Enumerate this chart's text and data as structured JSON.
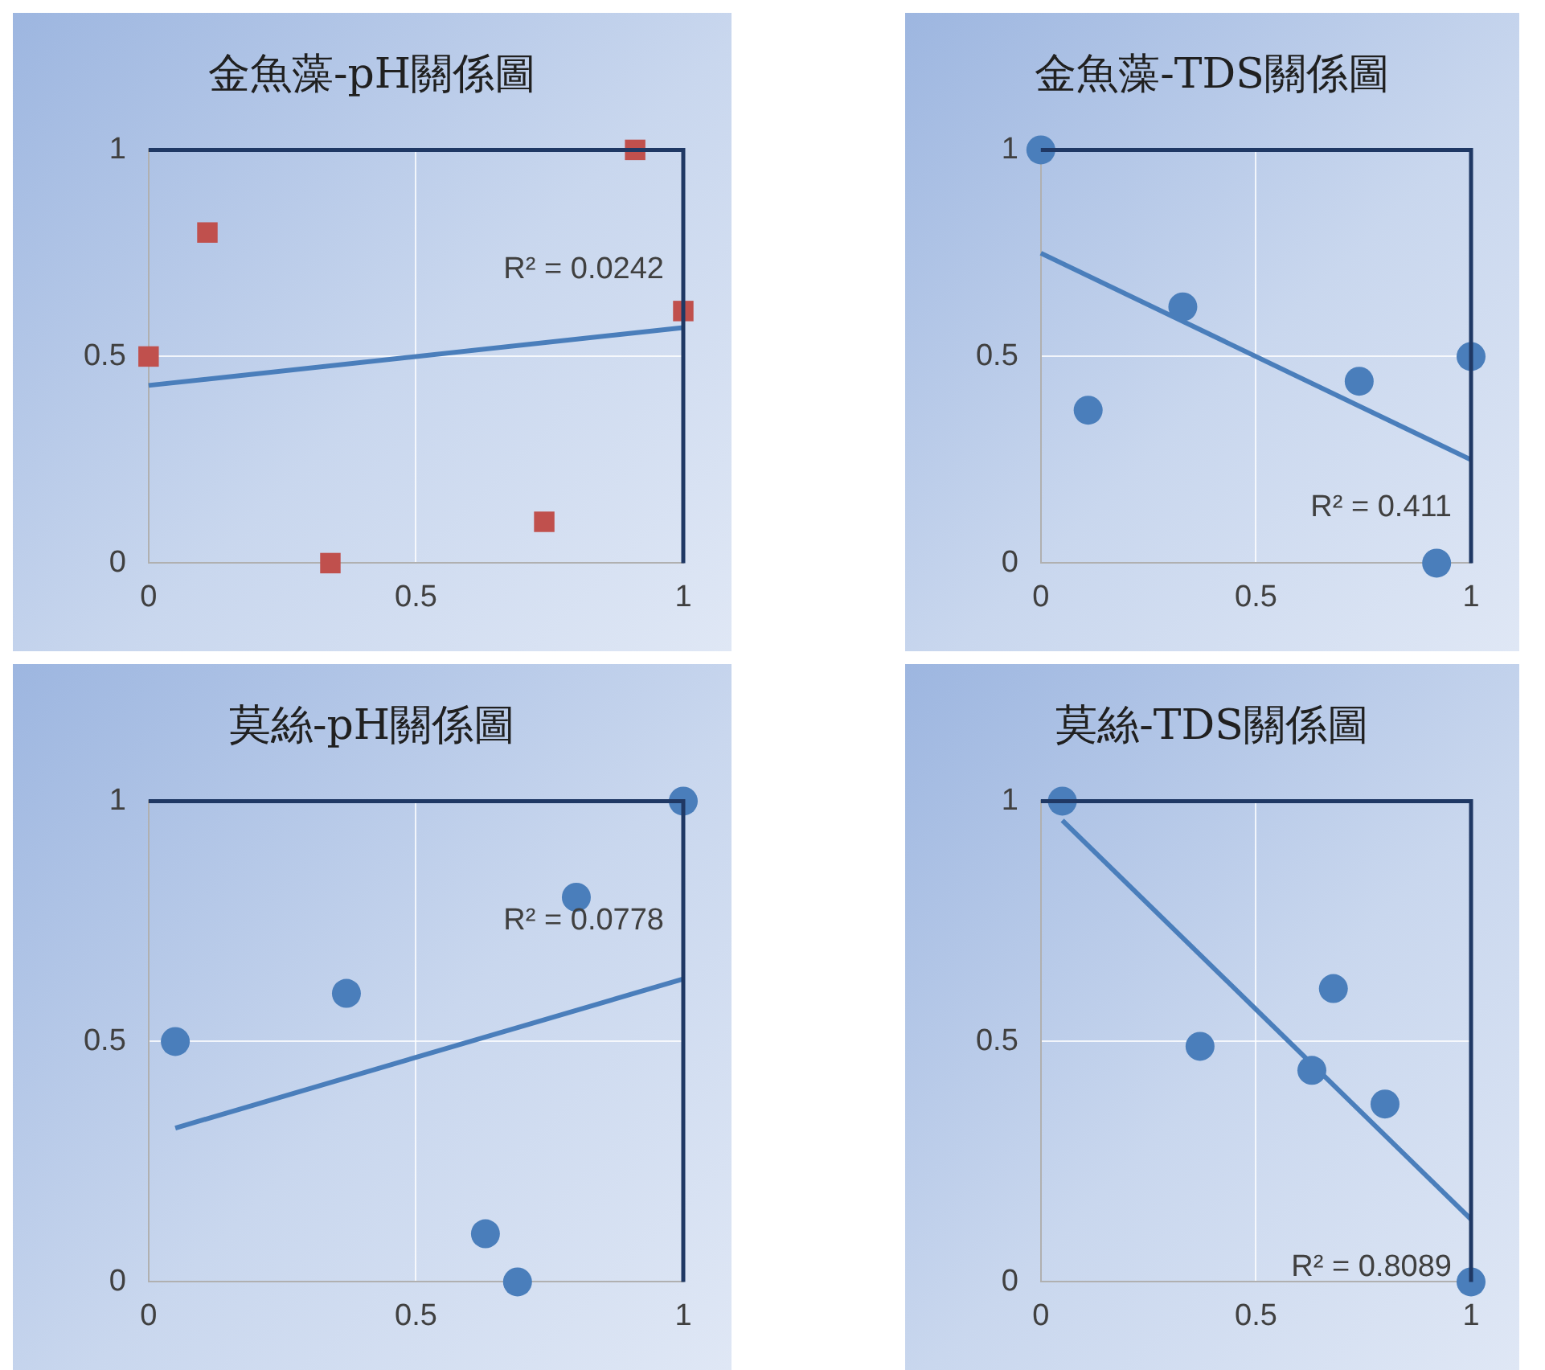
{
  "chart_data": [
    {
      "type": "scatter",
      "title": "金魚藻-pH關係圖",
      "xlim": [
        0,
        1
      ],
      "ylim": [
        0,
        1
      ],
      "xticks": [
        0,
        0.5,
        1
      ],
      "yticks": [
        0,
        0.5,
        1
      ],
      "grid": true,
      "annotations": [
        "R² = 0.0242"
      ],
      "series": [
        {
          "type": "scatter",
          "color": "#c0504d",
          "marker": "square",
          "x": [
            0,
            0.11,
            0.34,
            0.74,
            0.91,
            1
          ],
          "values": [
            0.5,
            0.8,
            0,
            0.1,
            1,
            0.61
          ]
        },
        {
          "type": "line",
          "color": "#4a7ebb",
          "marker": "none",
          "x": [
            0,
            1
          ],
          "values": [
            0.43,
            0.57
          ]
        }
      ]
    },
    {
      "type": "scatter",
      "title": "金魚藻-TDS關係圖",
      "xlim": [
        0,
        1
      ],
      "ylim": [
        0,
        1
      ],
      "xticks": [
        0,
        0.5,
        1
      ],
      "yticks": [
        0,
        0.5,
        1
      ],
      "grid": true,
      "annotations": [
        "R² = 0.411"
      ],
      "series": [
        {
          "type": "scatter",
          "color": "#4a7ebb",
          "marker": "circle",
          "x": [
            0,
            0.11,
            0.33,
            0.74,
            0.92,
            1
          ],
          "values": [
            1,
            0.37,
            0.62,
            0.44,
            0,
            0.5
          ]
        },
        {
          "type": "line",
          "color": "#4a7ebb",
          "marker": "none",
          "x": [
            0,
            1
          ],
          "values": [
            0.75,
            0.25
          ]
        }
      ]
    },
    {
      "type": "scatter",
      "title": "莫絲-pH關係圖",
      "xlim": [
        0,
        1
      ],
      "ylim": [
        0,
        1
      ],
      "xticks": [
        0,
        0.5,
        1
      ],
      "yticks": [
        0,
        0.5,
        1
      ],
      "grid": true,
      "annotations": [
        "R² = 0.0778"
      ],
      "series": [
        {
          "type": "scatter",
          "color": "#4a7ebb",
          "marker": "circle",
          "x": [
            0.05,
            0.37,
            0.63,
            0.69,
            0.8,
            1
          ],
          "values": [
            0.5,
            0.6,
            0.1,
            0,
            0.8,
            1
          ]
        },
        {
          "type": "line",
          "color": "#4a7ebb",
          "marker": "none",
          "x": [
            0.05,
            1
          ],
          "values": [
            0.32,
            0.63
          ]
        }
      ]
    },
    {
      "type": "scatter",
      "title": "莫絲-TDS關係圖",
      "xlim": [
        0,
        1
      ],
      "ylim": [
        0,
        1
      ],
      "xticks": [
        0,
        0.5,
        1
      ],
      "yticks": [
        0,
        0.5,
        1
      ],
      "grid": true,
      "annotations": [
        "R² = 0.8089"
      ],
      "series": [
        {
          "type": "scatter",
          "color": "#4a7ebb",
          "marker": "circle",
          "x": [
            0.05,
            0.37,
            0.63,
            0.68,
            0.8,
            1
          ],
          "values": [
            1,
            0.49,
            0.44,
            0.61,
            0.37,
            0
          ]
        },
        {
          "type": "line",
          "color": "#4a7ebb",
          "marker": "none",
          "x": [
            0.05,
            1
          ],
          "values": [
            0.96,
            0.13
          ]
        }
      ]
    }
  ]
}
